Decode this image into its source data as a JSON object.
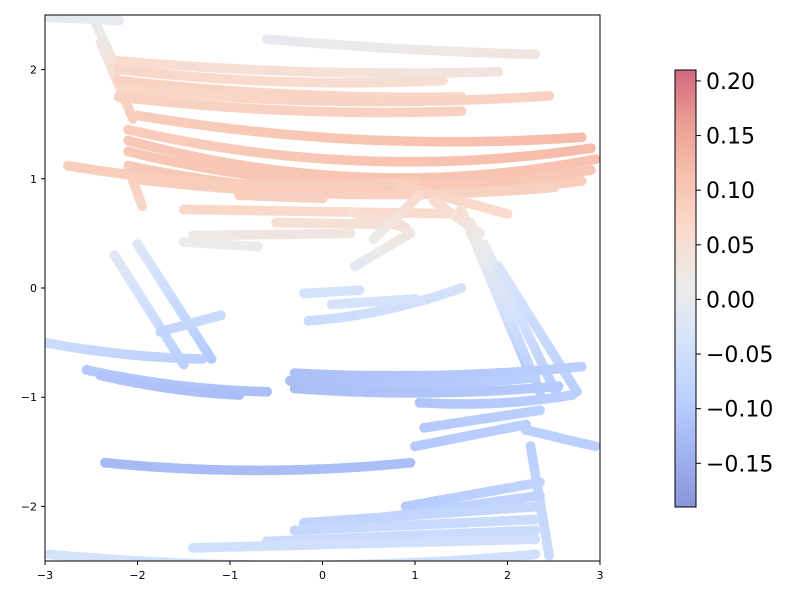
{
  "chart_data": {
    "type": "scatter",
    "title": "",
    "xlabel": "",
    "ylabel": "",
    "xlim": [
      -3,
      3
    ],
    "ylim": [
      -2.5,
      2.5
    ],
    "x_ticks": [
      -3,
      -2,
      -1,
      0,
      1,
      2,
      3
    ],
    "y_ticks": [
      -2,
      -1,
      0,
      1,
      2
    ],
    "x_tick_labels": [
      "−3",
      "−2",
      "−1",
      "0",
      "1",
      "2",
      "3"
    ],
    "y_tick_labels": [
      "−2",
      "−1",
      "0",
      "1",
      "2"
    ],
    "grid": false,
    "legend": "none",
    "colorbar": {
      "colormap": "coolwarm",
      "alpha": 0.6,
      "vmin": -0.19,
      "vmax": 0.21,
      "ticks": [
        -0.15,
        -0.1,
        -0.05,
        0.0,
        0.05,
        0.1,
        0.15,
        0.2
      ],
      "tick_labels": [
        "−0.15",
        "−0.10",
        "−0.05",
        "0.00",
        "0.05",
        "0.10",
        "0.15",
        "0.20"
      ]
    },
    "strokes": [
      {
        "from": [
          -3.0,
          2.48
        ],
        "to": [
          -2.2,
          2.45
        ],
        "c": [
          0.0,
          0.0
        ]
      },
      {
        "from": [
          -2.45,
          2.42
        ],
        "to": [
          -2.25,
          2.05
        ],
        "c": [
          0.0,
          0.04
        ]
      },
      {
        "from": [
          -2.4,
          2.25
        ],
        "to": [
          -2.05,
          1.55
        ],
        "c": [
          0.02,
          0.09
        ]
      },
      {
        "from": [
          -2.2,
          2.08
        ],
        "to": [
          1.9,
          1.98
        ],
        "c": [
          0.06,
          0.03
        ],
        "sag": 0.05
      },
      {
        "from": [
          -2.2,
          2.0
        ],
        "to": [
          1.3,
          1.9
        ],
        "c": [
          0.07,
          0.05
        ],
        "sag": 0.06
      },
      {
        "from": [
          -2.2,
          1.9
        ],
        "to": [
          1.5,
          1.75
        ],
        "c": [
          0.08,
          0.07
        ],
        "sag": 0.05
      },
      {
        "from": [
          -0.6,
          2.28
        ],
        "to": [
          2.3,
          2.14
        ],
        "c": [
          0.0,
          0.03
        ],
        "sag": 0.02
      },
      {
        "from": [
          -2.1,
          1.82
        ],
        "to": [
          2.45,
          1.76
        ],
        "c": [
          0.07,
          0.08
        ],
        "sag": 0.08
      },
      {
        "from": [
          -2.2,
          1.75
        ],
        "to": [
          1.5,
          1.62
        ],
        "c": [
          0.08,
          0.08
        ],
        "sag": 0.06
      },
      {
        "from": [
          -2.0,
          1.58
        ],
        "to": [
          2.8,
          1.38
        ],
        "c": [
          0.09,
          0.12
        ],
        "sag": 0.12
      },
      {
        "from": [
          -2.1,
          1.45
        ],
        "to": [
          2.9,
          1.28
        ],
        "c": [
          0.09,
          0.12
        ],
        "sag": 0.2
      },
      {
        "from": [
          -2.1,
          1.35
        ],
        "to": [
          2.95,
          1.18
        ],
        "c": [
          0.1,
          0.11
        ],
        "sag": 0.25
      },
      {
        "from": [
          -2.1,
          1.25
        ],
        "to": [
          2.9,
          1.08
        ],
        "c": [
          0.1,
          0.1
        ],
        "sag": 0.22
      },
      {
        "from": [
          -2.1,
          1.12
        ],
        "to": [
          2.8,
          0.98
        ],
        "c": [
          0.1,
          0.09
        ],
        "sag": 0.18
      },
      {
        "from": [
          -2.05,
          1.0
        ],
        "to": [
          2.5,
          0.92
        ],
        "c": [
          0.09,
          0.08
        ],
        "sag": 0.1
      },
      {
        "from": [
          -2.75,
          1.12
        ],
        "to": [
          1.0,
          0.98
        ],
        "c": [
          0.09,
          0.09
        ],
        "sag": 0.1
      },
      {
        "from": [
          -2.1,
          1.1
        ],
        "to": [
          -1.95,
          0.75
        ],
        "c": [
          0.09,
          0.07
        ]
      },
      {
        "from": [
          -0.9,
          0.85
        ],
        "to": [
          0.0,
          0.82
        ],
        "c": [
          0.09,
          0.08
        ]
      },
      {
        "from": [
          -1.5,
          0.72
        ],
        "to": [
          1.4,
          0.68
        ],
        "c": [
          0.07,
          0.06
        ]
      },
      {
        "from": [
          0.8,
          0.95
        ],
        "to": [
          2.0,
          0.68
        ],
        "c": [
          0.08,
          0.06
        ]
      },
      {
        "from": [
          0.3,
          0.7
        ],
        "to": [
          0.9,
          0.55
        ],
        "c": [
          0.05,
          0.04
        ]
      },
      {
        "from": [
          -0.5,
          0.6
        ],
        "to": [
          0.85,
          0.58
        ],
        "c": [
          0.05,
          0.05
        ]
      },
      {
        "from": [
          -1.4,
          0.48
        ],
        "to": [
          0.3,
          0.5
        ],
        "c": [
          0.02,
          0.03
        ]
      },
      {
        "from": [
          -1.5,
          0.42
        ],
        "to": [
          -0.7,
          0.38
        ],
        "c": [
          0.01,
          0.01
        ]
      },
      {
        "from": [
          0.55,
          0.45
        ],
        "to": [
          1.05,
          0.85
        ],
        "c": [
          0.01,
          0.06
        ]
      },
      {
        "from": [
          0.35,
          0.2
        ],
        "to": [
          0.95,
          0.5
        ],
        "c": [
          -0.01,
          0.03
        ]
      },
      {
        "from": [
          1.2,
          0.8
        ],
        "to": [
          1.7,
          0.5
        ],
        "c": [
          0.06,
          0.03
        ]
      },
      {
        "from": [
          1.5,
          0.72
        ],
        "to": [
          2.2,
          -0.7
        ],
        "c": [
          0.05,
          -0.1
        ]
      },
      {
        "from": [
          1.6,
          0.6
        ],
        "to": [
          2.35,
          -0.95
        ],
        "c": [
          0.03,
          -0.1
        ]
      },
      {
        "from": [
          1.75,
          0.4
        ],
        "to": [
          2.55,
          -1.0
        ],
        "c": [
          0.01,
          -0.1
        ]
      },
      {
        "from": [
          1.9,
          0.2
        ],
        "to": [
          2.75,
          -0.95
        ],
        "c": [
          -0.03,
          -0.09
        ]
      },
      {
        "from": [
          -2.25,
          0.3
        ],
        "to": [
          -1.5,
          -0.7
        ],
        "c": [
          -0.01,
          -0.09
        ]
      },
      {
        "from": [
          -2.0,
          0.4
        ],
        "to": [
          -1.2,
          -0.65
        ],
        "c": [
          -0.02,
          -0.1
        ]
      },
      {
        "from": [
          -1.75,
          -0.4
        ],
        "to": [
          -1.1,
          -0.25
        ],
        "c": [
          -0.08,
          -0.06
        ]
      },
      {
        "from": [
          -0.2,
          -0.05
        ],
        "to": [
          0.4,
          -0.02
        ],
        "c": [
          -0.04,
          -0.04
        ]
      },
      {
        "from": [
          -0.15,
          -0.3
        ],
        "to": [
          1.5,
          0.0
        ],
        "c": [
          -0.06,
          -0.04
        ],
        "sag": 0.05
      },
      {
        "from": [
          0.1,
          -0.15
        ],
        "to": [
          1.0,
          -0.1
        ],
        "c": [
          -0.04,
          -0.04
        ]
      },
      {
        "from": [
          -3.0,
          -0.5
        ],
        "to": [
          -1.3,
          -0.65
        ],
        "c": [
          -0.06,
          -0.09
        ],
        "sag": 0.03
      },
      {
        "from": [
          -2.55,
          -0.75
        ],
        "to": [
          -0.6,
          -0.95
        ],
        "c": [
          -0.1,
          -0.12
        ],
        "sag": 0.04
      },
      {
        "from": [
          -2.4,
          -0.8
        ],
        "to": [
          -0.9,
          -0.98
        ],
        "c": [
          -0.11,
          -0.12
        ],
        "sag": 0.03
      },
      {
        "from": [
          -0.3,
          -0.78
        ],
        "to": [
          2.8,
          -0.72
        ],
        "c": [
          -0.12,
          -0.09
        ],
        "sag": 0.05
      },
      {
        "from": [
          -0.35,
          -0.85
        ],
        "to": [
          2.3,
          -0.82
        ],
        "c": [
          -0.12,
          -0.09
        ],
        "sag": 0.05
      },
      {
        "from": [
          -0.3,
          -0.92
        ],
        "to": [
          2.55,
          -0.9
        ],
        "c": [
          -0.12,
          -0.1
        ],
        "sag": 0.05
      },
      {
        "from": [
          1.05,
          -1.05
        ],
        "to": [
          2.7,
          -0.98
        ],
        "c": [
          -0.11,
          -0.09
        ],
        "sag": 0.04
      },
      {
        "from": [
          1.1,
          -1.28
        ],
        "to": [
          2.35,
          -1.12
        ],
        "c": [
          -0.1,
          -0.09
        ]
      },
      {
        "from": [
          1.0,
          -1.45
        ],
        "to": [
          2.2,
          -1.25
        ],
        "c": [
          -0.1,
          -0.09
        ]
      },
      {
        "from": [
          2.2,
          -1.3
        ],
        "to": [
          2.95,
          -1.45
        ],
        "c": [
          -0.09,
          -0.09
        ]
      },
      {
        "from": [
          -2.35,
          -1.6
        ],
        "to": [
          0.95,
          -1.6
        ],
        "c": [
          -0.13,
          -0.12
        ],
        "sag": 0.07
      },
      {
        "from": [
          2.25,
          -1.45
        ],
        "to": [
          2.45,
          -2.45
        ],
        "c": [
          -0.09,
          -0.06
        ]
      },
      {
        "from": [
          0.9,
          -2.0
        ],
        "to": [
          2.35,
          -1.78
        ],
        "c": [
          -0.1,
          -0.08
        ]
      },
      {
        "from": [
          0.5,
          -2.12
        ],
        "to": [
          2.35,
          -1.9
        ],
        "c": [
          -0.09,
          -0.08
        ]
      },
      {
        "from": [
          -0.2,
          -2.15
        ],
        "to": [
          2.35,
          -2.0
        ],
        "c": [
          -0.08,
          -0.07
        ]
      },
      {
        "from": [
          -0.3,
          -2.22
        ],
        "to": [
          2.3,
          -2.12
        ],
        "c": [
          -0.07,
          -0.06
        ]
      },
      {
        "from": [
          -0.6,
          -2.32
        ],
        "to": [
          2.3,
          -2.22
        ],
        "c": [
          -0.06,
          -0.06
        ]
      },
      {
        "from": [
          -1.4,
          -2.38
        ],
        "to": [
          2.3,
          -2.3
        ],
        "c": [
          -0.05,
          -0.05
        ]
      },
      {
        "from": [
          -2.95,
          -2.44
        ],
        "to": [
          2.3,
          -2.44
        ],
        "c": [
          -0.04,
          -0.05
        ],
        "sag": 0.1
      }
    ]
  }
}
